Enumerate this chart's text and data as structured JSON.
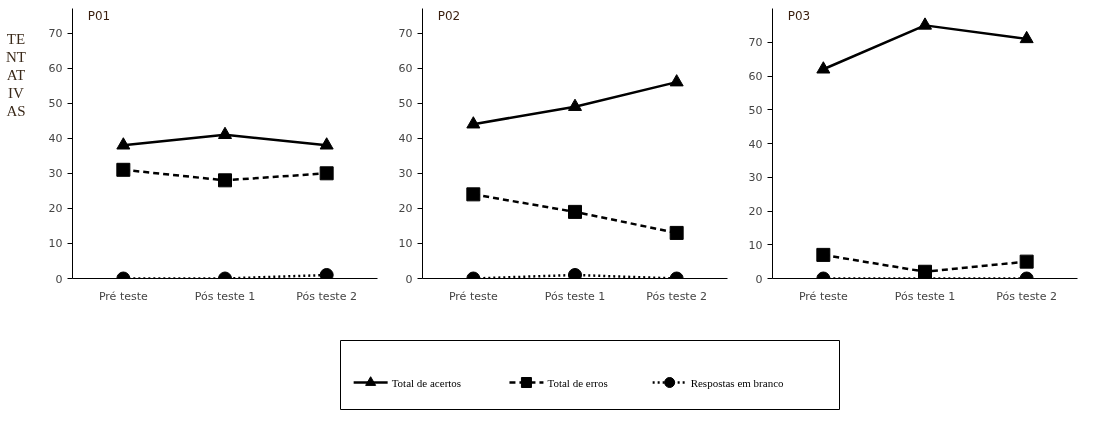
{
  "chart_data": [
    {
      "type": "line",
      "title": "P01",
      "ylabel": "TENTATIVAS",
      "categories": [
        "Pré teste",
        "Pós teste 1",
        "Pós teste 2"
      ],
      "ylim": [
        0,
        77
      ],
      "yticks": [
        0,
        10,
        20,
        30,
        40,
        50,
        60,
        70
      ],
      "grid": false,
      "series": [
        {
          "color": "#000000",
          "marker": "triangle",
          "line_style": "solid",
          "values": [
            38,
            41,
            38
          ]
        },
        {
          "color": "#000000",
          "marker": "square",
          "line_style": "dashed",
          "values": [
            31,
            28,
            30
          ]
        },
        {
          "color": "#000000",
          "marker": "circle",
          "line_style": "dotted",
          "values": [
            0,
            0,
            1
          ]
        }
      ]
    },
    {
      "type": "line",
      "title": "P02",
      "categories": [
        "Pré teste",
        "Pós teste 1",
        "Pós teste 2"
      ],
      "ylim": [
        0,
        77
      ],
      "yticks": [
        0,
        10,
        20,
        30,
        40,
        50,
        60,
        70
      ],
      "grid": false,
      "legend": "bottom",
      "series": [
        {
          "name": "Total de acertos",
          "color": "#000000",
          "marker": "triangle",
          "line_style": "solid",
          "values": [
            44,
            49,
            56
          ]
        },
        {
          "name": "Total de erros",
          "color": "#000000",
          "marker": "square",
          "line_style": "dashed",
          "values": [
            24,
            19,
            13
          ]
        },
        {
          "name": "Respostas em branco",
          "color": "#000000",
          "marker": "circle",
          "line_style": "dotted",
          "values": [
            0,
            1,
            0
          ]
        }
      ]
    },
    {
      "type": "line",
      "title": "P03",
      "categories": [
        "Pré teste",
        "Pós teste 1",
        "Pós teste 2"
      ],
      "ylim": [
        0,
        80
      ],
      "yticks": [
        0,
        10,
        20,
        30,
        40,
        50,
        60,
        70
      ],
      "grid": false,
      "series": [
        {
          "color": "#000000",
          "marker": "triangle",
          "line_style": "solid",
          "values": [
            62,
            75,
            71
          ]
        },
        {
          "color": "#000000",
          "marker": "square",
          "line_style": "dashed",
          "values": [
            7,
            2,
            5
          ]
        },
        {
          "color": "#000000",
          "marker": "circle",
          "line_style": "dotted",
          "values": [
            0,
            0,
            0
          ]
        }
      ]
    }
  ]
}
